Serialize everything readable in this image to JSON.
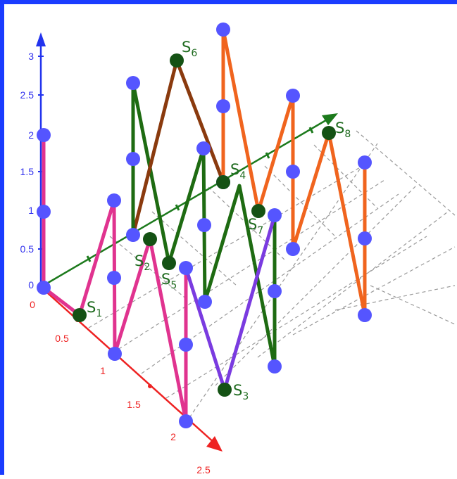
{
  "colors": {
    "frame": "#1a3cff",
    "vertical_axis": "#2233ee",
    "axis_along": "#ee2222",
    "axis_diagonal": "#1c7a1c",
    "grid": "#999999",
    "vertex": "#5555ff",
    "s_point": "#145214",
    "s_label": "#1f6b1f"
  },
  "vertical_axis": {
    "ticks": [
      "0",
      "0.5",
      "1",
      "1.5",
      "2",
      "2.5",
      "3"
    ]
  },
  "red_axis": {
    "ticks": [
      "0",
      "0.5",
      "1",
      "1.5",
      "2",
      "2.5"
    ]
  },
  "points": [
    {
      "label": "S",
      "sub": "1"
    },
    {
      "label": "S",
      "sub": "2"
    },
    {
      "label": "S",
      "sub": "3"
    },
    {
      "label": "S",
      "sub": "4"
    },
    {
      "label": "S",
      "sub": "5"
    },
    {
      "label": "S",
      "sub": "6"
    },
    {
      "label": "S",
      "sub": "7"
    },
    {
      "label": "S",
      "sub": "8"
    }
  ],
  "paths": [
    {
      "color": "#e0338f"
    },
    {
      "color": "#1e6b12"
    },
    {
      "color": "#8a3a0e"
    },
    {
      "color": "#7a3be0"
    },
    {
      "color": "#f0641e"
    }
  ]
}
